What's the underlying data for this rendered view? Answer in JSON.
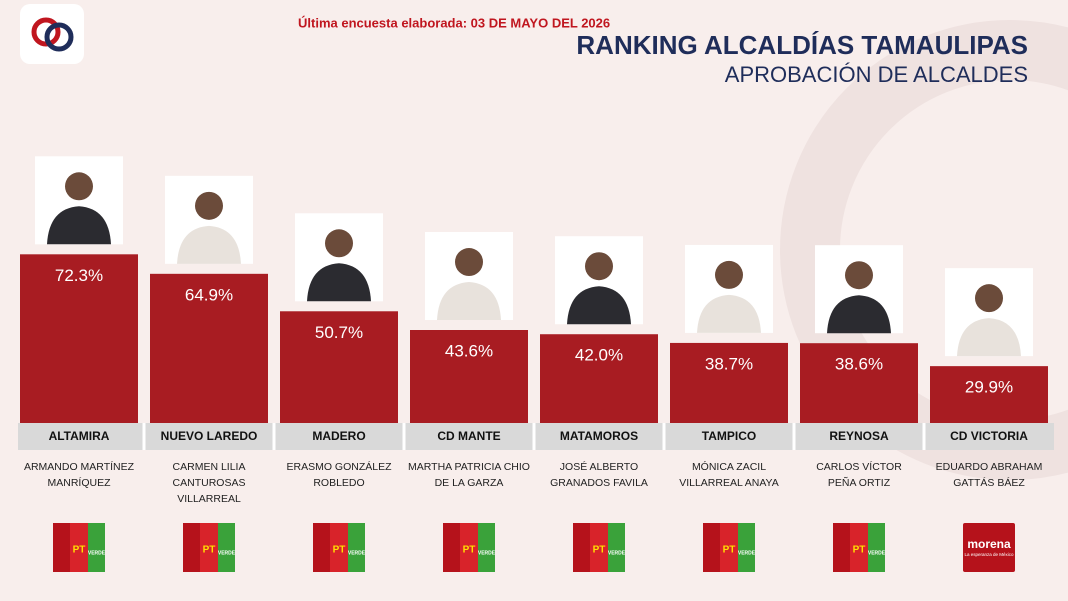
{
  "chart_data": {
    "type": "bar",
    "note": "Última encuesta elaborada: 03 DE MAYO DEL 2026",
    "title": "RANKING ALCALDÍAS TAMAULIPAS",
    "subtitle": "APROBACIÓN DE ALCALDES",
    "categories": [
      "ALTAMIRA",
      "NUEVO LAREDO",
      "MADERO",
      "CD MANTE",
      "MATAMOROS",
      "TAMPICO",
      "REYNOSA",
      "CD VICTORIA"
    ],
    "values": [
      72.3,
      64.9,
      50.7,
      43.6,
      42.0,
      38.7,
      38.6,
      29.9
    ],
    "value_labels": [
      "72.3%",
      "64.9%",
      "50.7%",
      "43.6%",
      "42.0%",
      "38.7%",
      "38.6%",
      "29.9%"
    ],
    "candidates": [
      [
        "ARMANDO MARTÍNEZ",
        "MANRÍQUEZ"
      ],
      [
        "CARMEN LILIA",
        "CANTUROSAS",
        "VILLARREAL"
      ],
      [
        "ERASMO GONZÁLEZ",
        "ROBLEDO"
      ],
      [
        "MARTHA PATRICIA CHIO",
        "DE LA GARZA"
      ],
      [
        "JOSÉ ALBERTO",
        "GRANADOS FAVILA"
      ],
      [
        "MÓNICA ZACIL",
        "VILLARREAL ANAYA"
      ],
      [
        "CARLOS VÍCTOR",
        "PEÑA ORTIZ"
      ],
      [
        "EDUARDO ABRAHAM",
        "GATTÁS BÁEZ"
      ]
    ],
    "party_logos": [
      [
        "PT",
        "VERDE"
      ],
      [
        "PT",
        "VERDE"
      ],
      [
        "PT",
        "VERDE"
      ],
      [
        "PT",
        "VERDE"
      ],
      [
        "PT",
        "VERDE"
      ],
      [
        "PT",
        "VERDE"
      ],
      [
        "PT",
        "VERDE"
      ],
      [
        "morena",
        "La esperanza de México"
      ]
    ],
    "color": "#a81c22",
    "ylim": [
      0,
      80
    ]
  }
}
